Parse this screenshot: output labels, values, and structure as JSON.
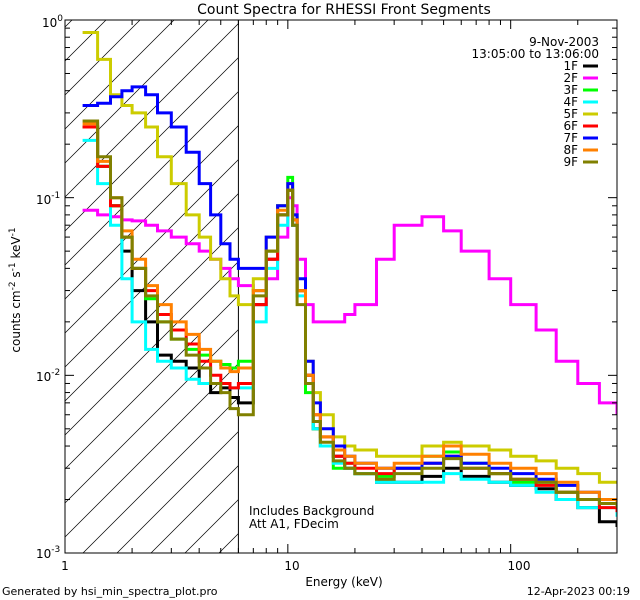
{
  "chart_data": {
    "type": "line",
    "title": "Count Spectra for RHESSI Front Segments",
    "xlabel": "Energy (keV)",
    "ylabel_main": "counts cm",
    "ylabel_mid": " s",
    "ylabel_end": " keV",
    "ylabel_sup1": "-2",
    "ylabel_sup2": "-1",
    "ylabel_sup3": "-1",
    "xscale": "log",
    "yscale": "log",
    "xlim": [
      1,
      300
    ],
    "ylim": [
      0.001,
      1
    ],
    "x_ticks": [
      {
        "value": 1,
        "label": "1"
      },
      {
        "value": 10,
        "label": "10"
      },
      {
        "value": 100,
        "label": "100"
      }
    ],
    "y_ticks": [
      {
        "value": 0.001,
        "base": "10",
        "exp": "-3"
      },
      {
        "value": 0.01,
        "base": "10",
        "exp": "-2"
      },
      {
        "value": 0.1,
        "base": "10",
        "exp": "-1"
      },
      {
        "value": 1,
        "base": "10",
        "exp": "0"
      }
    ],
    "date": "9-Nov-2003",
    "time_range": "13:05:00 to 13:06:00",
    "hatched_region_max_keV": 6,
    "annotations": [
      "Includes Background",
      "Att A1, FDecim"
    ],
    "series": [
      {
        "name": "1F",
        "color": "#000000",
        "x": [
          1.2,
          1.4,
          1.6,
          1.8,
          2.0,
          2.3,
          2.6,
          3.0,
          3.5,
          4.0,
          4.5,
          5.0,
          5.5,
          6.0,
          7.0,
          8.0,
          9.0,
          10.0,
          10.5,
          11.0,
          12.0,
          13.0,
          14.0,
          16.0,
          18.0,
          20.0,
          25.0,
          30.0,
          40.0,
          50.0,
          60.0,
          80.0,
          100.0,
          130.0,
          160.0,
          200.0,
          250.0,
          300.0
        ],
        "y": [
          0.25,
          0.15,
          0.09,
          0.05,
          0.03,
          0.02,
          0.013,
          0.012,
          0.011,
          0.009,
          0.008,
          0.0085,
          0.0075,
          0.007,
          0.025,
          0.045,
          0.08,
          0.11,
          0.07,
          0.03,
          0.01,
          0.005,
          0.004,
          0.0035,
          0.003,
          0.0028,
          0.0025,
          0.0025,
          0.0027,
          0.003,
          0.0027,
          0.0025,
          0.0024,
          0.0023,
          0.002,
          0.0018,
          0.0015,
          0.0014
        ]
      },
      {
        "name": "2F",
        "color": "#ff00ff",
        "x": [
          1.2,
          1.4,
          1.6,
          1.8,
          2.0,
          2.3,
          2.6,
          3.0,
          3.5,
          4.0,
          4.5,
          5.0,
          5.5,
          6.0,
          7.0,
          8.0,
          9.0,
          10.0,
          10.5,
          11.0,
          12.0,
          13.0,
          14.0,
          16.0,
          18.0,
          20.0,
          25.0,
          30.0,
          40.0,
          50.0,
          60.0,
          80.0,
          100.0,
          130.0,
          160.0,
          200.0,
          250.0,
          300.0
        ],
        "y": [
          0.085,
          0.08,
          0.078,
          0.075,
          0.074,
          0.07,
          0.065,
          0.06,
          0.055,
          0.05,
          0.045,
          0.04,
          0.035,
          0.032,
          0.03,
          0.035,
          0.06,
          0.1,
          0.09,
          0.045,
          0.025,
          0.02,
          0.02,
          0.02,
          0.022,
          0.025,
          0.045,
          0.07,
          0.078,
          0.065,
          0.05,
          0.035,
          0.025,
          0.018,
          0.012,
          0.009,
          0.007,
          0.006
        ]
      },
      {
        "name": "3F",
        "color": "#00ff00",
        "x": [
          1.2,
          1.4,
          1.6,
          1.8,
          2.0,
          2.3,
          2.6,
          3.0,
          3.5,
          4.0,
          4.5,
          5.0,
          5.5,
          6.0,
          7.0,
          8.0,
          9.0,
          10.0,
          10.5,
          11.0,
          12.0,
          13.0,
          14.0,
          16.0,
          18.0,
          20.0,
          25.0,
          30.0,
          40.0,
          50.0,
          60.0,
          80.0,
          100.0,
          130.0,
          160.0,
          200.0,
          250.0,
          300.0
        ],
        "y": [
          0.25,
          0.15,
          0.09,
          0.06,
          0.04,
          0.027,
          0.02,
          0.016,
          0.014,
          0.013,
          0.012,
          0.0115,
          0.011,
          0.012,
          0.03,
          0.05,
          0.09,
          0.13,
          0.08,
          0.03,
          0.008,
          0.005,
          0.004,
          0.003,
          0.0032,
          0.0028,
          0.0027,
          0.003,
          0.0035,
          0.0037,
          0.0032,
          0.0028,
          0.0025,
          0.0025,
          0.0022,
          0.002,
          0.002,
          0.0018
        ]
      },
      {
        "name": "4F",
        "color": "#00ffff",
        "x": [
          1.2,
          1.4,
          1.6,
          1.8,
          2.0,
          2.3,
          2.6,
          3.0,
          3.5,
          4.0,
          4.5,
          5.0,
          5.5,
          6.0,
          7.0,
          8.0,
          9.0,
          10.0,
          10.5,
          11.0,
          12.0,
          13.0,
          14.0,
          16.0,
          18.0,
          20.0,
          25.0,
          30.0,
          40.0,
          50.0,
          60.0,
          80.0,
          100.0,
          130.0,
          160.0,
          200.0,
          250.0,
          300.0
        ],
        "y": [
          0.21,
          0.12,
          0.07,
          0.035,
          0.02,
          0.014,
          0.012,
          0.011,
          0.0095,
          0.009,
          0.009,
          0.009,
          0.0085,
          0.0085,
          0.02,
          0.04,
          0.07,
          0.11,
          0.07,
          0.028,
          0.009,
          0.005,
          0.004,
          0.0032,
          0.003,
          0.0028,
          0.0025,
          0.0025,
          0.0025,
          0.0028,
          0.0026,
          0.0025,
          0.0024,
          0.0022,
          0.002,
          0.0018,
          0.0018,
          0.0016
        ]
      },
      {
        "name": "5F",
        "color": "#cccc00",
        "x": [
          1.2,
          1.4,
          1.6,
          1.8,
          2.0,
          2.3,
          2.6,
          3.0,
          3.5,
          4.0,
          4.5,
          5.0,
          5.5,
          6.0,
          7.0,
          8.0,
          9.0,
          10.0,
          10.5,
          11.0,
          12.0,
          13.0,
          14.0,
          16.0,
          18.0,
          20.0,
          25.0,
          30.0,
          40.0,
          50.0,
          60.0,
          80.0,
          100.0,
          130.0,
          160.0,
          200.0,
          250.0,
          300.0
        ],
        "y": [
          0.85,
          0.6,
          0.38,
          0.33,
          0.3,
          0.25,
          0.17,
          0.12,
          0.08,
          0.06,
          0.045,
          0.035,
          0.028,
          0.025,
          0.035,
          0.06,
          0.09,
          0.12,
          0.075,
          0.03,
          0.012,
          0.008,
          0.006,
          0.0045,
          0.004,
          0.0038,
          0.0035,
          0.0035,
          0.004,
          0.0042,
          0.004,
          0.0038,
          0.0035,
          0.0033,
          0.003,
          0.0028,
          0.0025,
          0.0025
        ]
      },
      {
        "name": "6F",
        "color": "#ff0000",
        "x": [
          1.2,
          1.4,
          1.6,
          1.8,
          2.0,
          2.3,
          2.6,
          3.0,
          3.5,
          4.0,
          4.5,
          5.0,
          5.5,
          6.0,
          7.0,
          8.0,
          9.0,
          10.0,
          10.5,
          11.0,
          12.0,
          13.0,
          14.0,
          16.0,
          18.0,
          20.0,
          25.0,
          30.0,
          40.0,
          50.0,
          60.0,
          80.0,
          100.0,
          130.0,
          160.0,
          200.0,
          250.0,
          300.0
        ],
        "y": [
          0.25,
          0.15,
          0.09,
          0.06,
          0.04,
          0.03,
          0.022,
          0.018,
          0.015,
          0.012,
          0.01,
          0.009,
          0.0085,
          0.009,
          0.025,
          0.045,
          0.08,
          0.11,
          0.075,
          0.03,
          0.01,
          0.006,
          0.0045,
          0.0035,
          0.0032,
          0.003,
          0.0028,
          0.003,
          0.0032,
          0.0035,
          0.003,
          0.0028,
          0.0026,
          0.0024,
          0.0022,
          0.002,
          0.0018,
          0.0017
        ]
      },
      {
        "name": "7F",
        "color": "#0000ff",
        "x": [
          1.2,
          1.4,
          1.6,
          1.8,
          2.0,
          2.3,
          2.6,
          3.0,
          3.5,
          4.0,
          4.5,
          5.0,
          5.5,
          6.0,
          7.0,
          8.0,
          9.0,
          10.0,
          10.5,
          11.0,
          12.0,
          13.0,
          14.0,
          16.0,
          18.0,
          20.0,
          25.0,
          30.0,
          40.0,
          50.0,
          60.0,
          80.0,
          100.0,
          130.0,
          160.0,
          200.0,
          250.0,
          300.0
        ],
        "y": [
          0.33,
          0.34,
          0.37,
          0.4,
          0.42,
          0.38,
          0.3,
          0.25,
          0.18,
          0.12,
          0.08,
          0.055,
          0.045,
          0.04,
          0.04,
          0.06,
          0.09,
          0.12,
          0.08,
          0.035,
          0.012,
          0.007,
          0.005,
          0.004,
          0.0035,
          0.0032,
          0.003,
          0.003,
          0.0032,
          0.0035,
          0.0032,
          0.003,
          0.0028,
          0.0026,
          0.0024,
          0.0022,
          0.002,
          0.0019
        ]
      },
      {
        "name": "8F",
        "color": "#ff8000",
        "x": [
          1.2,
          1.4,
          1.6,
          1.8,
          2.0,
          2.3,
          2.6,
          3.0,
          3.5,
          4.0,
          4.5,
          5.0,
          5.5,
          6.0,
          7.0,
          8.0,
          9.0,
          10.0,
          10.5,
          11.0,
          12.0,
          13.0,
          14.0,
          16.0,
          18.0,
          20.0,
          25.0,
          30.0,
          40.0,
          50.0,
          60.0,
          80.0,
          100.0,
          130.0,
          160.0,
          200.0,
          250.0,
          300.0
        ],
        "y": [
          0.26,
          0.16,
          0.1,
          0.065,
          0.045,
          0.032,
          0.025,
          0.02,
          0.017,
          0.014,
          0.012,
          0.011,
          0.0105,
          0.011,
          0.03,
          0.05,
          0.085,
          0.11,
          0.075,
          0.03,
          0.01,
          0.006,
          0.0045,
          0.0038,
          0.0035,
          0.0032,
          0.003,
          0.0032,
          0.0035,
          0.004,
          0.0036,
          0.0032,
          0.003,
          0.0028,
          0.0025,
          0.0022,
          0.002,
          0.0019
        ]
      },
      {
        "name": "9F",
        "color": "#808000",
        "x": [
          1.2,
          1.4,
          1.6,
          1.8,
          2.0,
          2.3,
          2.6,
          3.0,
          3.5,
          4.0,
          4.5,
          5.0,
          5.5,
          6.0,
          7.0,
          8.0,
          9.0,
          10.0,
          10.5,
          11.0,
          12.0,
          13.0,
          14.0,
          16.0,
          18.0,
          20.0,
          25.0,
          30.0,
          40.0,
          50.0,
          60.0,
          80.0,
          100.0,
          130.0,
          160.0,
          200.0,
          250.0,
          300.0
        ],
        "y": [
          0.27,
          0.17,
          0.1,
          0.06,
          0.04,
          0.028,
          0.02,
          0.016,
          0.013,
          0.011,
          0.009,
          0.008,
          0.0065,
          0.006,
          0.028,
          0.05,
          0.08,
          0.11,
          0.07,
          0.025,
          0.009,
          0.0055,
          0.0042,
          0.0033,
          0.003,
          0.0028,
          0.0026,
          0.0028,
          0.003,
          0.0034,
          0.003,
          0.0028,
          0.0026,
          0.0025,
          0.0022,
          0.002,
          0.0019,
          0.0018
        ]
      }
    ]
  },
  "footer": {
    "left": "Generated by  hsi_min_spectra_plot.pro",
    "right": "12-Apr-2023 00:19"
  }
}
